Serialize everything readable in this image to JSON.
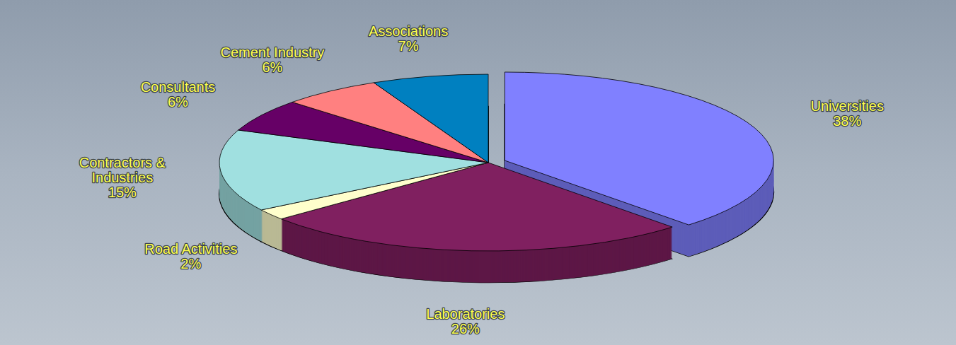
{
  "chart_data": {
    "type": "pie",
    "categories": [
      "Universities",
      "Laboratories",
      "Road Activities",
      "Contractors & Industries",
      "Consultants",
      "Cement Industry",
      "Associations"
    ],
    "values": [
      38,
      26,
      2,
      15,
      6,
      6,
      7
    ],
    "value_labels": [
      "38%",
      "26%",
      "2%",
      "15%",
      "6%",
      "6%",
      "7%"
    ],
    "colors": [
      "#8080ff",
      "#802060",
      "#ffffcc",
      "#a0e0e0",
      "#660066",
      "#ff8080",
      "#0080c0"
    ],
    "data_labels": true
  }
}
